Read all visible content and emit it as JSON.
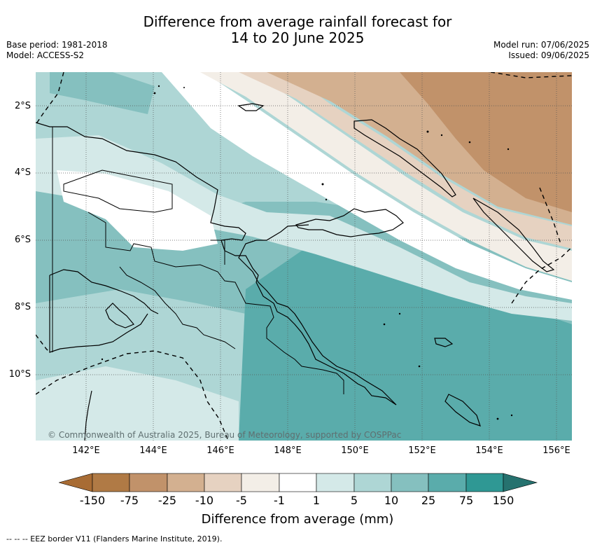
{
  "title": {
    "line1": "Difference from average rainfall forecast for",
    "line2": "14 to 20 June 2025"
  },
  "meta": {
    "base_period": "Base period: 1981-2018",
    "model": "Model: ACCESS-S2",
    "model_run": "Model run: 07/06/2025",
    "issued": "Issued: 09/06/2025"
  },
  "map": {
    "latitude_labels": [
      "2°S",
      "4°S",
      "6°S",
      "8°S",
      "10°S"
    ],
    "longitude_labels": [
      "142°E",
      "144°E",
      "146°E",
      "148°E",
      "150°E",
      "152°E",
      "154°E",
      "156°E"
    ],
    "copyright": "© Commonwealth of Australia 2025, Bureau of Meteorology, supported by COSPPac",
    "colors": {
      "dry_extreme": "#a86c34",
      "dry_75_150": "#b07a45",
      "dry_25_75": "#c1926a",
      "dry_10_25": "#d3b090",
      "dry_5_10": "#e6d2c1",
      "dry_1_5": "#f3eee7",
      "neutral": "#ffffff",
      "wet_1_5": "#d4e9e8",
      "wet_5_10": "#aed6d5",
      "wet_10_25": "#85c0bf",
      "wet_25_75": "#5aacab",
      "wet_75_150": "#2f9894",
      "wet_extreme": "#26726f"
    }
  },
  "colorbar": {
    "ticks": [
      "-150",
      "-75",
      "-25",
      "-10",
      "-5",
      "-1",
      "1",
      "5",
      "10",
      "25",
      "75",
      "150"
    ],
    "label": "Difference from average (mm)"
  },
  "footer": {
    "legend": "--  --  -- EEZ border V11 (Flanders Marine Institute, 2019)."
  }
}
